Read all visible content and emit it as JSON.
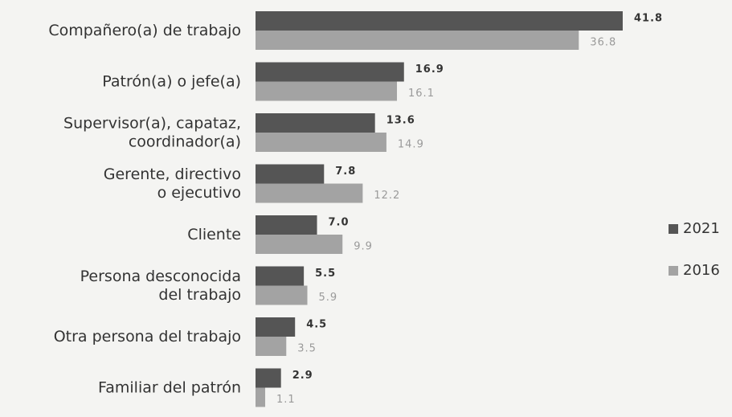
{
  "chart_data": {
    "type": "bar",
    "orientation": "horizontal",
    "categories": [
      [
        "Compañero(a) de trabajo"
      ],
      [
        "Patrón(a) o jefe(a)"
      ],
      [
        "Supervisor(a), capataz,",
        "coordinador(a)"
      ],
      [
        "Gerente, directivo",
        "o ejecutivo"
      ],
      [
        "Cliente"
      ],
      [
        "Persona desconocida",
        "del trabajo"
      ],
      [
        "Otra persona del trabajo"
      ],
      [
        "Familiar del patrón"
      ]
    ],
    "series": [
      {
        "name": "2021",
        "color": "#555555",
        "values": [
          41.8,
          16.9,
          13.6,
          7.8,
          7.0,
          5.5,
          4.5,
          2.9
        ],
        "value_labels": [
          "41.8",
          "16.9",
          "13.6",
          "7.8",
          "7.0",
          "5.5",
          "4.5",
          "2.9"
        ]
      },
      {
        "name": "2016",
        "color": "#a3a3a3",
        "values": [
          36.8,
          16.1,
          14.9,
          12.2,
          9.9,
          5.9,
          3.5,
          1.1
        ],
        "value_labels": [
          "36.8",
          "16.1",
          "14.9",
          "12.2",
          "9.9",
          "5.9",
          "3.5",
          "1.1"
        ]
      }
    ],
    "legend": "right"
  }
}
